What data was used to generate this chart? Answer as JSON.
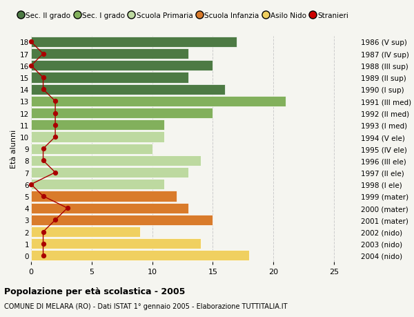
{
  "ages": [
    18,
    17,
    16,
    15,
    14,
    13,
    12,
    11,
    10,
    9,
    8,
    7,
    6,
    5,
    4,
    3,
    2,
    1,
    0
  ],
  "values": [
    17,
    13,
    15,
    13,
    16,
    21,
    15,
    11,
    11,
    10,
    14,
    13,
    11,
    12,
    13,
    15,
    9,
    14,
    18
  ],
  "stranieri": [
    0,
    1,
    0,
    1,
    1,
    2,
    2,
    2,
    2,
    1,
    1,
    2,
    0,
    1,
    3,
    2,
    1,
    1,
    1
  ],
  "right_labels": [
    "1986 (V sup)",
    "1987 (IV sup)",
    "1988 (III sup)",
    "1989 (II sup)",
    "1990 (I sup)",
    "1991 (III med)",
    "1992 (II med)",
    "1993 (I med)",
    "1994 (V ele)",
    "1995 (IV ele)",
    "1996 (III ele)",
    "1997 (II ele)",
    "1998 (I ele)",
    "1999 (mater)",
    "2000 (mater)",
    "2001 (mater)",
    "2002 (nido)",
    "2003 (nido)",
    "2004 (nido)"
  ],
  "bar_colors": [
    "#4d7a44",
    "#4d7a44",
    "#4d7a44",
    "#4d7a44",
    "#4d7a44",
    "#82b05c",
    "#82b05c",
    "#82b05c",
    "#bdd9a0",
    "#bdd9a0",
    "#bdd9a0",
    "#bdd9a0",
    "#bdd9a0",
    "#d97b2b",
    "#d97b2b",
    "#d97b2b",
    "#f0d060",
    "#f0d060",
    "#f0d060"
  ],
  "legend_colors": [
    "#4d7a44",
    "#82b05c",
    "#bdd9a0",
    "#d97b2b",
    "#f0d060",
    "#cc0000"
  ],
  "legend_labels": [
    "Sec. II grado",
    "Sec. I grado",
    "Scuola Primaria",
    "Scuola Infanzia",
    "Asilo Nido",
    "Stranieri"
  ],
  "ylabel": "Età alunni",
  "title": "Popolazione per età scolastica - 2005",
  "subtitle": "COMUNE DI MELARA (RO) - Dati ISTAT 1° gennaio 2005 - Elaborazione TUTTITALIA.IT",
  "xlim": [
    0,
    27
  ],
  "xticks": [
    0,
    5,
    10,
    15,
    20,
    25
  ],
  "background_color": "#f5f5f0",
  "stranieri_color": "#aa0000",
  "grid_color": "#cccccc",
  "bar_edge_color": "white"
}
